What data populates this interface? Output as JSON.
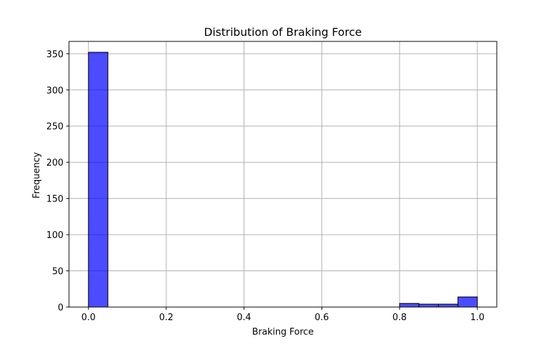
{
  "chart_data": {
    "type": "bar",
    "subtype": "histogram",
    "title": "Distribution of Braking Force",
    "xlabel": "Braking Force",
    "ylabel": "Frequency",
    "xlim": [
      -0.05,
      1.05
    ],
    "ylim": [
      0,
      367
    ],
    "xticks": [
      0.0,
      0.2,
      0.4,
      0.6,
      0.8,
      1.0
    ],
    "xtick_labels": [
      "0.0",
      "0.2",
      "0.4",
      "0.6",
      "0.8",
      "1.0"
    ],
    "yticks": [
      0,
      50,
      100,
      150,
      200,
      250,
      300,
      350
    ],
    "ytick_labels": [
      "0",
      "50",
      "100",
      "150",
      "200",
      "250",
      "300",
      "350"
    ],
    "grid": true,
    "bin_edges": [
      0.0,
      0.05,
      0.1,
      0.15,
      0.2,
      0.25,
      0.3,
      0.35,
      0.4,
      0.45,
      0.5,
      0.55,
      0.6,
      0.65,
      0.7,
      0.75,
      0.8,
      0.85,
      0.9,
      0.95,
      1.0
    ],
    "values": [
      352,
      0,
      0,
      0,
      0,
      0,
      0,
      0,
      0,
      0,
      0,
      0,
      0,
      0,
      0,
      0,
      5,
      4,
      4,
      14
    ],
    "colors": {
      "bar_fill": "#0000ff",
      "bar_fill_opacity": 0.7,
      "bar_edge": "#000000",
      "grid": "#b0b0b0",
      "axes": "#000000"
    }
  }
}
